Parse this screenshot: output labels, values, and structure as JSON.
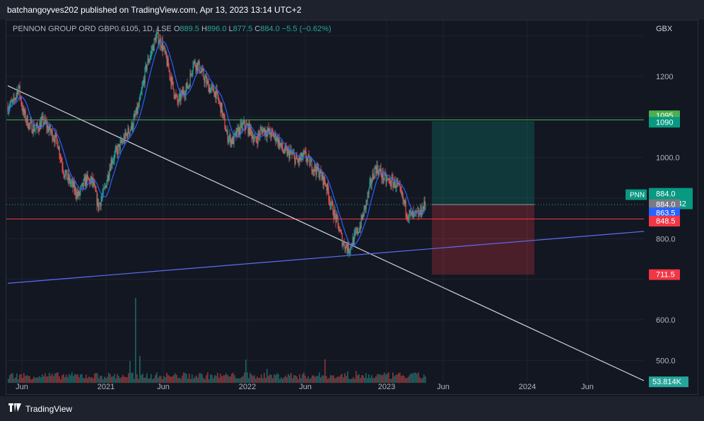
{
  "header": {
    "publisher_line": "batchangoyves202 published on TradingView.com, Apr 13, 2023 13:14 UTC+2"
  },
  "footer": {
    "logo_text": "TradingView"
  },
  "legend": {
    "title": "PENNON GROUP ORD GBP0.6105, 1D, LSE",
    "o_label": "O",
    "o_value": "889.5",
    "h_label": "H",
    "h_value": "896.0",
    "l_label": "L",
    "l_value": "877.5",
    "c_label": "C",
    "c_value": "884.0",
    "change": "−5.5 (−0.62%)"
  },
  "currency": "GBX",
  "colors": {
    "up": "#26a69a",
    "down": "#ef5350",
    "ma": "#2962ff",
    "background": "#131722",
    "grid": "#1f2330"
  },
  "chart_data": {
    "type": "candlestick",
    "symbol": "PNN",
    "ylim": [
      448,
      1385
    ],
    "y_ticks": [
      "1200",
      "1000.0",
      "800.0",
      "600.0",
      "500.0"
    ],
    "x_ticks": [
      "Jun",
      "2021",
      "Jun",
      "2022",
      "Jun",
      "2023",
      "Jun",
      "2024",
      "Jun"
    ],
    "price_path": [
      [
        0,
        1125
      ],
      [
        8,
        1135
      ],
      [
        15,
        1175
      ],
      [
        22,
        1110
      ],
      [
        30,
        1080
      ],
      [
        40,
        1070
      ],
      [
        50,
        1090
      ],
      [
        60,
        1065
      ],
      [
        70,
        1040
      ],
      [
        80,
        960
      ],
      [
        90,
        935
      ],
      [
        100,
        905
      ],
      [
        110,
        945
      ],
      [
        120,
        940
      ],
      [
        128,
        880
      ],
      [
        136,
        915
      ],
      [
        146,
        990
      ],
      [
        156,
        1020
      ],
      [
        166,
        1050
      ],
      [
        176,
        1080
      ],
      [
        186,
        1130
      ],
      [
        196,
        1225
      ],
      [
        203,
        1260
      ],
      [
        210,
        1300
      ],
      [
        218,
        1280
      ],
      [
        226,
        1230
      ],
      [
        234,
        1170
      ],
      [
        240,
        1135
      ],
      [
        248,
        1160
      ],
      [
        256,
        1180
      ],
      [
        262,
        1235
      ],
      [
        270,
        1225
      ],
      [
        278,
        1195
      ],
      [
        286,
        1170
      ],
      [
        294,
        1160
      ],
      [
        302,
        1120
      ],
      [
        310,
        1055
      ],
      [
        318,
        1040
      ],
      [
        326,
        1065
      ],
      [
        334,
        1080
      ],
      [
        342,
        1070
      ],
      [
        350,
        1040
      ],
      [
        360,
        1070
      ],
      [
        370,
        1060
      ],
      [
        380,
        1050
      ],
      [
        390,
        1015
      ],
      [
        400,
        1010
      ],
      [
        410,
        990
      ],
      [
        420,
        1005
      ],
      [
        430,
        980
      ],
      [
        440,
        965
      ],
      [
        450,
        935
      ],
      [
        458,
        880
      ],
      [
        466,
        840
      ],
      [
        474,
        790
      ],
      [
        482,
        775
      ],
      [
        490,
        800
      ],
      [
        498,
        830
      ],
      [
        506,
        880
      ],
      [
        514,
        940
      ],
      [
        520,
        975
      ],
      [
        526,
        965
      ],
      [
        534,
        945
      ],
      [
        542,
        940
      ],
      [
        550,
        935
      ],
      [
        558,
        900
      ],
      [
        566,
        860
      ],
      [
        574,
        855
      ],
      [
        582,
        860
      ],
      [
        592,
        890
      ],
      [
        601,
        884
      ]
    ],
    "current_price": "884.0",
    "countdown": "05:05:42",
    "volume_last": "53.814K",
    "levels": {
      "resistance_upper": {
        "label": "1095",
        "color": "#4caf50"
      },
      "resistance": {
        "label": "1090",
        "color": "#089981"
      },
      "ma_value": {
        "label": "863.5",
        "color": "#2962ff"
      },
      "support": {
        "label": "848.5",
        "color": "#f23645"
      },
      "stop": {
        "label": "711.5",
        "color": "#f23645"
      }
    },
    "position_tool": {
      "entry": 884,
      "target": 1090,
      "stop": 711.5
    }
  }
}
